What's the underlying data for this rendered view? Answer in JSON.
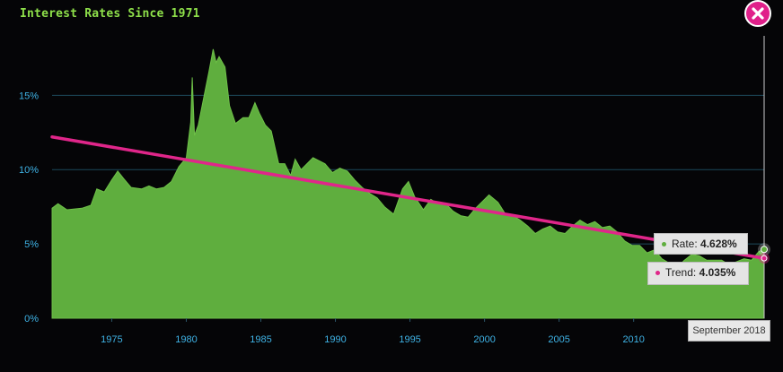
{
  "chart_data": {
    "type": "area",
    "title": "Interest Rates Since 1971",
    "xlabel": "",
    "ylabel": "",
    "xlim": [
      1971,
      2018.75
    ],
    "ylim": [
      0,
      19
    ],
    "grid": true,
    "x_ticks": [
      "1975",
      "1980",
      "1985",
      "1990",
      "1995",
      "2000",
      "2005",
      "2010"
    ],
    "y_ticks": [
      "0%",
      "5%",
      "10%",
      "15%"
    ],
    "y_tick_values": [
      0,
      5,
      10,
      15
    ],
    "x_tick_values": [
      1975,
      1980,
      1985,
      1990,
      1995,
      2000,
      2005,
      2010
    ],
    "series": [
      {
        "name": "Rate",
        "color": "#5fae3e",
        "points": [
          [
            1971.0,
            7.4
          ],
          [
            1971.4,
            7.7
          ],
          [
            1972.0,
            7.3
          ],
          [
            1973.0,
            7.4
          ],
          [
            1973.6,
            7.6
          ],
          [
            1974.0,
            8.7
          ],
          [
            1974.5,
            8.5
          ],
          [
            1975.0,
            9.3
          ],
          [
            1975.4,
            9.9
          ],
          [
            1975.8,
            9.4
          ],
          [
            1976.3,
            8.8
          ],
          [
            1977.0,
            8.7
          ],
          [
            1977.5,
            8.9
          ],
          [
            1978.0,
            8.7
          ],
          [
            1978.5,
            8.8
          ],
          [
            1979.0,
            9.2
          ],
          [
            1979.5,
            10.2
          ],
          [
            1980.0,
            10.8
          ],
          [
            1980.3,
            13.2
          ],
          [
            1980.4,
            16.2
          ],
          [
            1980.55,
            12.3
          ],
          [
            1980.8,
            13.0
          ],
          [
            1981.2,
            15.0
          ],
          [
            1981.5,
            16.5
          ],
          [
            1981.8,
            18.1
          ],
          [
            1982.0,
            17.2
          ],
          [
            1982.2,
            17.6
          ],
          [
            1982.6,
            16.9
          ],
          [
            1982.9,
            14.3
          ],
          [
            1983.3,
            13.1
          ],
          [
            1983.8,
            13.5
          ],
          [
            1984.2,
            13.5
          ],
          [
            1984.6,
            14.5
          ],
          [
            1984.9,
            13.8
          ],
          [
            1985.3,
            13.0
          ],
          [
            1985.7,
            12.6
          ],
          [
            1986.2,
            10.4
          ],
          [
            1986.6,
            10.4
          ],
          [
            1987.0,
            9.6
          ],
          [
            1987.3,
            10.7
          ],
          [
            1987.7,
            10.0
          ],
          [
            1988.0,
            10.3
          ],
          [
            1988.5,
            10.8
          ],
          [
            1988.9,
            10.6
          ],
          [
            1989.3,
            10.4
          ],
          [
            1989.8,
            9.8
          ],
          [
            1990.3,
            10.1
          ],
          [
            1990.8,
            9.9
          ],
          [
            1991.3,
            9.3
          ],
          [
            1991.8,
            8.8
          ],
          [
            1992.3,
            8.4
          ],
          [
            1992.8,
            8.1
          ],
          [
            1993.3,
            7.5
          ],
          [
            1993.9,
            7.0
          ],
          [
            1994.5,
            8.7
          ],
          [
            1994.9,
            9.2
          ],
          [
            1995.3,
            8.2
          ],
          [
            1995.9,
            7.3
          ],
          [
            1996.4,
            8.0
          ],
          [
            1996.9,
            7.7
          ],
          [
            1997.4,
            7.7
          ],
          [
            1997.9,
            7.2
          ],
          [
            1998.4,
            6.9
          ],
          [
            1998.9,
            6.8
          ],
          [
            1999.4,
            7.4
          ],
          [
            1999.9,
            7.9
          ],
          [
            2000.3,
            8.3
          ],
          [
            2000.9,
            7.8
          ],
          [
            2001.4,
            7.0
          ],
          [
            2001.9,
            6.9
          ],
          [
            2002.4,
            6.6
          ],
          [
            2002.9,
            6.2
          ],
          [
            2003.4,
            5.7
          ],
          [
            2003.9,
            6.0
          ],
          [
            2004.4,
            6.2
          ],
          [
            2004.9,
            5.8
          ],
          [
            2005.4,
            5.7
          ],
          [
            2005.9,
            6.2
          ],
          [
            2006.4,
            6.6
          ],
          [
            2006.9,
            6.3
          ],
          [
            2007.4,
            6.5
          ],
          [
            2007.9,
            6.1
          ],
          [
            2008.4,
            6.2
          ],
          [
            2008.9,
            5.8
          ],
          [
            2009.4,
            5.2
          ],
          [
            2009.9,
            4.9
          ],
          [
            2010.4,
            4.9
          ],
          [
            2010.9,
            4.4
          ],
          [
            2011.4,
            4.6
          ],
          [
            2011.9,
            4.0
          ],
          [
            2012.4,
            3.7
          ],
          [
            2012.9,
            3.4
          ],
          [
            2013.4,
            3.9
          ],
          [
            2013.9,
            4.3
          ],
          [
            2014.4,
            4.2
          ],
          [
            2014.9,
            3.9
          ],
          [
            2015.4,
            3.9
          ],
          [
            2015.9,
            3.9
          ],
          [
            2016.4,
            3.6
          ],
          [
            2016.9,
            3.8
          ],
          [
            2017.4,
            4.0
          ],
          [
            2017.9,
            3.9
          ],
          [
            2018.4,
            4.5
          ],
          [
            2018.75,
            4.628
          ]
        ]
      },
      {
        "name": "Trend",
        "color": "#e0268a",
        "points": [
          [
            1971.0,
            12.2
          ],
          [
            2018.75,
            4.035
          ]
        ]
      }
    ]
  },
  "tooltip": {
    "rate_label": "Rate:",
    "rate_value": "4.628%",
    "trend_label": "Trend:",
    "trend_value": "4.035%",
    "date": "September 2018",
    "rate_color": "#5fae3e",
    "trend_color": "#e0268a"
  },
  "colors": {
    "title": "#8ee04a",
    "tick_labels": "#3fb3e6",
    "grid": "#1d4a5c",
    "close_button": "#e0208a"
  },
  "icons": {
    "close": "close-icon"
  }
}
